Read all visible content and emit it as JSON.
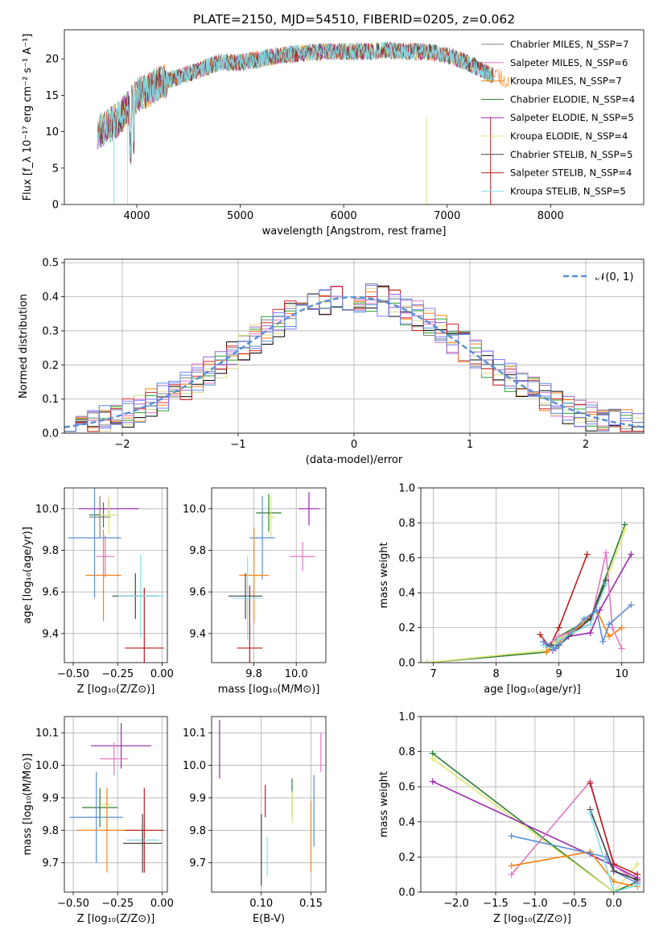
{
  "figure_title": "PLATE=2150, MJD=54510, FIBERID=0205, z=0.062",
  "model_colors": [
    "#808080",
    "#e377c2",
    "#ff7f0e",
    "#2ca02c",
    "#9467bd",
    "#dbdb8d",
    "#000000",
    "#d62728",
    "#7f7fff"
  ],
  "chart_data": [
    {
      "id": "spectrum",
      "type": "line",
      "xlabel": "wavelength [Angstrom, rest frame]",
      "ylabel": "Flux [f_λ 10⁻¹⁷ erg cm⁻² s⁻¹ A⁻¹]",
      "xlim": [
        3300,
        8900
      ],
      "ylim": [
        0,
        24
      ],
      "xticks": [
        4000,
        5000,
        6000,
        7000,
        8000
      ],
      "yticks": [
        0,
        5,
        10,
        15,
        20
      ],
      "grid": false,
      "legend_placement": "upper-right",
      "legend": [
        {
          "name": "Chabrier MILES, N_SSP=7",
          "color": "#808080"
        },
        {
          "name": "Salpeter MILES, N_SSP=6",
          "color": "#e377c2"
        },
        {
          "name": "Kroupa MILES, N_SSP=7",
          "color": "#ff7f0e"
        },
        {
          "name": "Chabrier ELODIE, N_SSP=4",
          "color": "#2e7d32"
        },
        {
          "name": "Salpeter ELODIE, N_SSP=5",
          "color": "#9c27b0"
        },
        {
          "name": "Kroupa ELODIE, N_SSP=4",
          "color": "#dce775"
        },
        {
          "name": "Chabrier STELIB, N_SSP=5",
          "color": "#424242"
        },
        {
          "name": "Salpeter STELIB, N_SSP=4",
          "color": "#b71c1c"
        },
        {
          "name": "Kroupa STELIB, N_SSP=5",
          "color": "#80deea"
        }
      ],
      "spectrum_continuum": {
        "x": [
          3600,
          3700,
          3800,
          3900,
          4000,
          4100,
          4200,
          4400,
          4600,
          4800,
          5000,
          5200,
          5400,
          5600,
          5800,
          6000,
          6200,
          6400,
          6600,
          6800,
          7000,
          7200,
          7400,
          7600,
          7800,
          8000,
          8200,
          8400,
          8600,
          8800
        ],
        "y": [
          10.0,
          10.5,
          11.5,
          13.0,
          15.0,
          15.5,
          16.5,
          17.5,
          18.5,
          19.5,
          19.5,
          20.0,
          20.5,
          20.8,
          21.0,
          21.0,
          21.0,
          21.2,
          21.0,
          21.0,
          20.5,
          19.5,
          18.0,
          17.0,
          16.5,
          16.5,
          17.0,
          17.5,
          18.0,
          18.0
        ]
      }
    },
    {
      "id": "residuals",
      "type": "histogram",
      "xlabel": "(data-model)/error",
      "ylabel": "Normed distribution",
      "xlim": [
        -2.5,
        2.5
      ],
      "ylim": [
        0,
        0.51
      ],
      "xticks": [
        -2,
        -1,
        0,
        1,
        2
      ],
      "yticks": [
        0.0,
        0.1,
        0.2,
        0.3,
        0.4,
        0.5
      ],
      "grid": true,
      "legend_placement": "upper-right",
      "reference_curve": {
        "name": "𝒩(0, 1)",
        "mean": 0,
        "sigma": 1,
        "style": "dashed",
        "color": "#5b8fd6"
      },
      "bin_width": 0.1
    },
    {
      "id": "z-age",
      "type": "errorbar",
      "xlabel": "Z [log₁₀(Z/Z⊙)]",
      "ylabel": "age  [log₁₀(age/yr)]",
      "xlim": [
        -0.55,
        0.03
      ],
      "ylim": [
        9.26,
        10.1
      ],
      "xticks": [
        -0.5,
        -0.25,
        0.0
      ],
      "yticks": [
        9.4,
        9.6,
        9.8,
        10.0
      ],
      "grid": true,
      "points": [
        {
          "x": -0.35,
          "y": 9.96,
          "xerr": 0.06,
          "yerr": 0.1,
          "color": "#808080"
        },
        {
          "x": -0.32,
          "y": 9.77,
          "xerr": 0.05,
          "yerr": 0.1,
          "color": "#e377c2"
        },
        {
          "x": -0.33,
          "y": 9.68,
          "xerr": 0.1,
          "yerr": 0.22,
          "color": "#ff7f0e"
        },
        {
          "x": -0.33,
          "y": 9.97,
          "xerr": 0.08,
          "yerr": 0.06,
          "color": "#2e7d32"
        },
        {
          "x": -0.3,
          "y": 10.0,
          "xerr": 0.17,
          "yerr": 0.04,
          "color": "#9c27b0"
        },
        {
          "x": -0.3,
          "y": 9.97,
          "xerr": 0.05,
          "yerr": 0.09,
          "color": "#dce775"
        },
        {
          "x": -0.15,
          "y": 9.58,
          "xerr": 0.13,
          "yerr": 0.11,
          "color": "#424242"
        },
        {
          "x": -0.1,
          "y": 9.33,
          "xerr": 0.11,
          "yerr": 0.29,
          "color": "#b71c1c"
        },
        {
          "x": -0.12,
          "y": 9.58,
          "xerr": 0.13,
          "yerr": 0.2,
          "color": "#80deea"
        },
        {
          "x": -0.38,
          "y": 9.86,
          "xerr": 0.15,
          "yerr": 0.29,
          "color": "#5b8fd6"
        }
      ]
    },
    {
      "id": "mass-age",
      "type": "errorbar",
      "xlabel": "mass [log₁₀(M/M⊙)]",
      "ylabel": "",
      "xlim": [
        9.6,
        10.14
      ],
      "ylim": [
        9.26,
        10.1
      ],
      "xticks": [
        9.8,
        10.0
      ],
      "yticks": [
        9.4,
        9.6,
        9.8,
        10.0
      ],
      "grid": true,
      "points": [
        {
          "x": 9.87,
          "y": 9.98,
          "xerr": 0.06,
          "yerr": 0.09,
          "color": "#2e7d32"
        },
        {
          "x": 9.88,
          "y": 9.96,
          "xerr": 0.02,
          "yerr": 0.1,
          "color": "#dce775"
        },
        {
          "x": 10.06,
          "y": 10.0,
          "xerr": 0.05,
          "yerr": 0.08,
          "color": "#9c27b0"
        },
        {
          "x": 10.03,
          "y": 9.77,
          "xerr": 0.06,
          "yerr": 0.07,
          "color": "#e377c2"
        },
        {
          "x": 9.84,
          "y": 9.86,
          "xerr": 0.06,
          "yerr": 0.2,
          "color": "#5b8fd6"
        },
        {
          "x": 9.8,
          "y": 9.68,
          "xerr": 0.07,
          "yerr": 0.23,
          "color": "#ff7f0e"
        },
        {
          "x": 9.76,
          "y": 9.58,
          "xerr": 0.08,
          "yerr": 0.11,
          "color": "#424242"
        },
        {
          "x": 9.78,
          "y": 9.33,
          "xerr": 0.06,
          "yerr": 0.3,
          "color": "#b71c1c"
        },
        {
          "x": 9.77,
          "y": 9.57,
          "xerr": 0.07,
          "yerr": 0.2,
          "color": "#80deea"
        }
      ]
    },
    {
      "id": "age-massweight",
      "type": "line",
      "xlabel": "age  [log₁₀(age/yr)]",
      "ylabel": "mass weight",
      "xlim": [
        6.8,
        10.35
      ],
      "ylim": [
        0,
        1.0
      ],
      "xticks": [
        7,
        8,
        9,
        10
      ],
      "yticks": [
        0.0,
        0.2,
        0.4,
        0.6,
        0.8,
        1.0
      ],
      "grid": true,
      "series": [
        {
          "color": "#2e7d32",
          "x": [
            6.9,
            8.8,
            9.0,
            9.5,
            10.05
          ],
          "y": [
            0.0,
            0.06,
            0.15,
            0.25,
            0.79
          ]
        },
        {
          "color": "#dce775",
          "x": [
            6.9,
            8.8,
            9.0,
            9.5,
            10.05
          ],
          "y": [
            0.0,
            0.07,
            0.14,
            0.22,
            0.76
          ]
        },
        {
          "color": "#9c27b0",
          "x": [
            8.75,
            8.9,
            9.15,
            9.5,
            9.65,
            10.15
          ],
          "y": [
            0.12,
            0.07,
            0.15,
            0.17,
            0.3,
            0.62
          ]
        },
        {
          "color": "#b71c1c",
          "x": [
            8.7,
            8.85,
            9.0,
            9.45
          ],
          "y": [
            0.16,
            0.09,
            0.2,
            0.62
          ]
        },
        {
          "color": "#e377c2",
          "x": [
            8.8,
            9.0,
            9.5,
            9.75,
            9.85,
            10.0
          ],
          "y": [
            0.1,
            0.15,
            0.22,
            0.63,
            0.2,
            0.08
          ]
        },
        {
          "color": "#ff7f0e",
          "x": [
            8.8,
            9.0,
            9.3,
            9.6,
            9.8,
            10.0
          ],
          "y": [
            0.06,
            0.12,
            0.2,
            0.3,
            0.15,
            0.2
          ]
        },
        {
          "color": "#424242",
          "x": [
            8.8,
            9.0,
            9.5,
            9.75
          ],
          "y": [
            0.1,
            0.1,
            0.25,
            0.47
          ]
        },
        {
          "color": "#80deea",
          "x": [
            8.75,
            8.9,
            9.0,
            9.5,
            9.75
          ],
          "y": [
            0.1,
            0.08,
            0.13,
            0.22,
            0.45
          ]
        },
        {
          "color": "#5b8fd6",
          "x": [
            8.75,
            8.95,
            9.4,
            9.6,
            9.7,
            9.8,
            10.15
          ],
          "y": [
            0.12,
            0.08,
            0.25,
            0.3,
            0.12,
            0.22,
            0.33
          ]
        }
      ]
    },
    {
      "id": "z-mass",
      "type": "errorbar",
      "xlabel": "Z [log₁₀(Z/Z⊙)]",
      "ylabel": "mass [log₁₀(M/M⊙)]",
      "xlim": [
        -0.55,
        0.03
      ],
      "ylim": [
        9.61,
        10.15
      ],
      "xticks": [
        -0.5,
        -0.25,
        0.0
      ],
      "yticks": [
        9.7,
        9.8,
        9.9,
        10.0,
        10.1
      ],
      "grid": true,
      "points": [
        {
          "x": -0.23,
          "y": 10.06,
          "xerr": 0.17,
          "yerr": 0.07,
          "color": "#9c27b0"
        },
        {
          "x": -0.27,
          "y": 10.02,
          "xerr": 0.08,
          "yerr": 0.05,
          "color": "#e377c2"
        },
        {
          "x": -0.35,
          "y": 9.87,
          "xerr": 0.1,
          "yerr": 0.06,
          "color": "#2e7d32"
        },
        {
          "x": -0.31,
          "y": 9.88,
          "xerr": 0.03,
          "yerr": 0.05,
          "color": "#dce775"
        },
        {
          "x": -0.37,
          "y": 9.84,
          "xerr": 0.15,
          "yerr": 0.14,
          "color": "#5b8fd6"
        },
        {
          "x": -0.31,
          "y": 9.8,
          "xerr": 0.17,
          "yerr": 0.13,
          "color": "#ff7f0e"
        },
        {
          "x": -0.1,
          "y": 9.8,
          "xerr": 0.11,
          "yerr": 0.13,
          "color": "#b71c1c"
        },
        {
          "x": -0.11,
          "y": 9.77,
          "xerr": 0.09,
          "yerr": 0.03,
          "color": "#80deea"
        },
        {
          "x": -0.11,
          "y": 9.76,
          "xerr": 0.11,
          "yerr": 0.09,
          "color": "#424242"
        }
      ]
    },
    {
      "id": "ebv-mass",
      "type": "errorbar",
      "xlabel": "E(B-V)",
      "ylabel": "",
      "xlim": [
        0.05,
        0.165
      ],
      "ylim": [
        9.61,
        10.15
      ],
      "xticks": [
        0.1,
        0.15
      ],
      "yticks": [
        9.7,
        9.8,
        9.9,
        10.0,
        10.1
      ],
      "grid": true,
      "points": [
        {
          "x": 0.058,
          "y": 10.05,
          "xerr": 0,
          "yerr": 0.09,
          "color": "#9c27b0"
        },
        {
          "x": 0.1,
          "y": 9.74,
          "xerr": 0,
          "yerr": 0.11,
          "color": "#424242"
        },
        {
          "x": 0.104,
          "y": 9.89,
          "xerr": 0,
          "yerr": 0.05,
          "color": "#b71c1c"
        },
        {
          "x": 0.106,
          "y": 9.72,
          "xerr": 0,
          "yerr": 0.06,
          "color": "#80deea"
        },
        {
          "x": 0.131,
          "y": 9.9,
          "xerr": 0,
          "yerr": 0.06,
          "color": "#2e7d32"
        },
        {
          "x": 0.131,
          "y": 9.87,
          "xerr": 0,
          "yerr": 0.05,
          "color": "#dce775"
        },
        {
          "x": 0.15,
          "y": 9.78,
          "xerr": 0,
          "yerr": 0.11,
          "color": "#ff7f0e"
        },
        {
          "x": 0.153,
          "y": 9.86,
          "xerr": 0,
          "yerr": 0.11,
          "color": "#5b8fd6"
        },
        {
          "x": 0.16,
          "y": 10.04,
          "xerr": 0,
          "yerr": 0.06,
          "color": "#e377c2"
        }
      ]
    },
    {
      "id": "z-massweight",
      "type": "line",
      "xlabel": "Z [log₁₀(Z/Z⊙)]",
      "ylabel": "mass weight",
      "xlim": [
        -2.45,
        0.38
      ],
      "ylim": [
        0,
        1.0
      ],
      "xticks": [
        -2.0,
        -1.5,
        -1.0,
        -0.5,
        0.0
      ],
      "yticks": [
        0.0,
        0.2,
        0.4,
        0.6,
        0.8,
        1.0
      ],
      "grid": true,
      "series": [
        {
          "color": "#2e7d32",
          "x": [
            -2.3,
            0.0,
            0.3
          ],
          "y": [
            0.79,
            0.0,
            0.06
          ]
        },
        {
          "color": "#dce775",
          "x": [
            -2.3,
            0.0,
            0.3
          ],
          "y": [
            0.76,
            0.0,
            0.16
          ]
        },
        {
          "color": "#9c27b0",
          "x": [
            -2.3,
            0.0,
            0.3
          ],
          "y": [
            0.63,
            0.15,
            0.08
          ]
        },
        {
          "color": "#e377c2",
          "x": [
            -1.3,
            -0.3,
            0.0,
            0.3
          ],
          "y": [
            0.1,
            0.63,
            0.15,
            0.06
          ]
        },
        {
          "color": "#ff7f0e",
          "x": [
            -1.3,
            -0.3,
            0.0,
            0.3
          ],
          "y": [
            0.15,
            0.23,
            0.06,
            0.03
          ]
        },
        {
          "color": "#5b8fd6",
          "x": [
            -1.3,
            -0.3,
            -0.1,
            0.0,
            0.3
          ],
          "y": [
            0.32,
            0.22,
            0.2,
            0.12,
            0.05
          ]
        },
        {
          "color": "#b71c1c",
          "x": [
            -0.3,
            0.0,
            0.3
          ],
          "y": [
            0.62,
            0.16,
            0.1
          ]
        },
        {
          "color": "#424242",
          "x": [
            -0.3,
            0.0,
            0.3
          ],
          "y": [
            0.47,
            0.12,
            0.07
          ]
        },
        {
          "color": "#80deea",
          "x": [
            -0.3,
            0.0,
            0.3
          ],
          "y": [
            0.45,
            0.0,
            0.04
          ]
        }
      ]
    }
  ]
}
